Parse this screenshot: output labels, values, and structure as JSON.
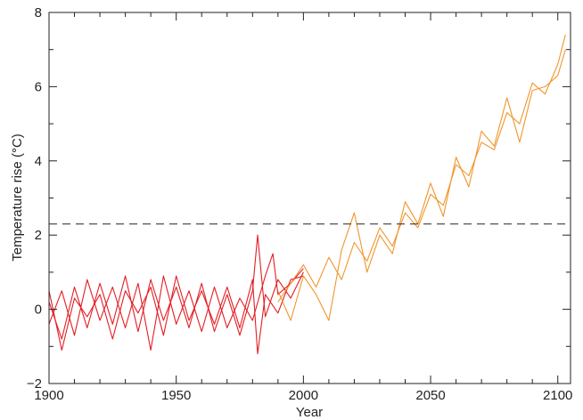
{
  "chart_data": {
    "type": "line",
    "xlabel": "Year",
    "ylabel": "Temperature rise (°C)",
    "xlim": [
      1900,
      2105
    ],
    "ylim": [
      -2,
      8
    ],
    "x_ticks": [
      1900,
      1950,
      2000,
      2050,
      2100
    ],
    "x_tick_labels": [
      "1900",
      "1950",
      "2000",
      "2050",
      "2100"
    ],
    "y_ticks": [
      -2,
      0,
      2,
      4,
      6,
      8
    ],
    "y_tick_labels": [
      "−2",
      "0",
      "2",
      "4",
      "6",
      "8"
    ],
    "grid": false,
    "reference_line": {
      "y": 2.3,
      "style": "dashed"
    },
    "colors": {
      "historical": "#e31e24",
      "projected": "#f0962c",
      "reference": "#222222"
    },
    "series": [
      {
        "group": "historical",
        "x": [
          1900,
          1905,
          1910,
          1915,
          1920,
          1925,
          1930,
          1935,
          1940,
          1945,
          1950,
          1955,
          1960,
          1965,
          1970,
          1975,
          1980,
          1982,
          1985,
          1990,
          1995,
          2000
        ],
        "values": [
          0.2,
          -0.8,
          0.6,
          -0.5,
          0.7,
          -0.4,
          0.9,
          -0.6,
          0.8,
          -0.3,
          0.6,
          -0.5,
          0.7,
          -0.6,
          0.4,
          -0.7,
          0.5,
          2.0,
          -0.2,
          0.8,
          0.3,
          1.0
        ]
      },
      {
        "group": "historical",
        "x": [
          1900,
          1905,
          1910,
          1915,
          1920,
          1925,
          1930,
          1935,
          1940,
          1945,
          1950,
          1955,
          1960,
          1965,
          1970,
          1975,
          1980,
          1985,
          1988,
          1990,
          1995,
          2000
        ],
        "values": [
          -0.4,
          0.5,
          -0.7,
          0.8,
          -0.3,
          0.6,
          -0.5,
          0.7,
          -1.1,
          0.9,
          -0.4,
          0.5,
          -0.6,
          0.6,
          -0.5,
          0.3,
          -0.3,
          0.9,
          1.5,
          0.4,
          0.7,
          1.1
        ]
      },
      {
        "group": "historical",
        "x": [
          1900,
          1905,
          1910,
          1915,
          1920,
          1925,
          1930,
          1935,
          1940,
          1945,
          1950,
          1955,
          1960,
          1965,
          1970,
          1975,
          1980,
          1982,
          1985,
          1990,
          1995,
          2000
        ],
        "values": [
          0.5,
          -1.1,
          0.3,
          -0.2,
          0.4,
          -0.8,
          0.5,
          -0.1,
          0.6,
          -0.7,
          0.9,
          -0.3,
          0.5,
          -0.4,
          0.6,
          -0.5,
          0.8,
          -1.2,
          0.4,
          -0.1,
          0.8,
          0.9
        ]
      },
      {
        "group": "projected",
        "x": [
          1990,
          1995,
          2000,
          2005,
          2010,
          2015,
          2020,
          2025,
          2030,
          2035,
          2040,
          2045,
          2050,
          2055,
          2060,
          2065,
          2070,
          2075,
          2080,
          2085,
          2090,
          2095,
          2100,
          2103
        ],
        "values": [
          0.2,
          0.7,
          1.2,
          0.6,
          1.4,
          0.8,
          1.8,
          1.3,
          2.2,
          1.7,
          2.6,
          2.2,
          3.1,
          2.8,
          3.9,
          3.6,
          4.5,
          4.3,
          5.3,
          5.0,
          6.1,
          5.8,
          6.6,
          7.4
        ]
      },
      {
        "group": "projected",
        "x": [
          1990,
          1995,
          2000,
          2005,
          2010,
          2015,
          2020,
          2025,
          2030,
          2035,
          2040,
          2045,
          2050,
          2055,
          2060,
          2065,
          2070,
          2075,
          2080,
          2085,
          2090,
          2095,
          2100,
          2103
        ],
        "values": [
          0.5,
          -0.3,
          0.9,
          0.4,
          -0.3,
          1.6,
          2.6,
          1.0,
          2.0,
          1.5,
          2.9,
          2.3,
          3.4,
          2.5,
          4.1,
          3.3,
          4.8,
          4.4,
          5.7,
          4.5,
          5.9,
          6.0,
          6.3,
          7.0
        ]
      }
    ]
  }
}
